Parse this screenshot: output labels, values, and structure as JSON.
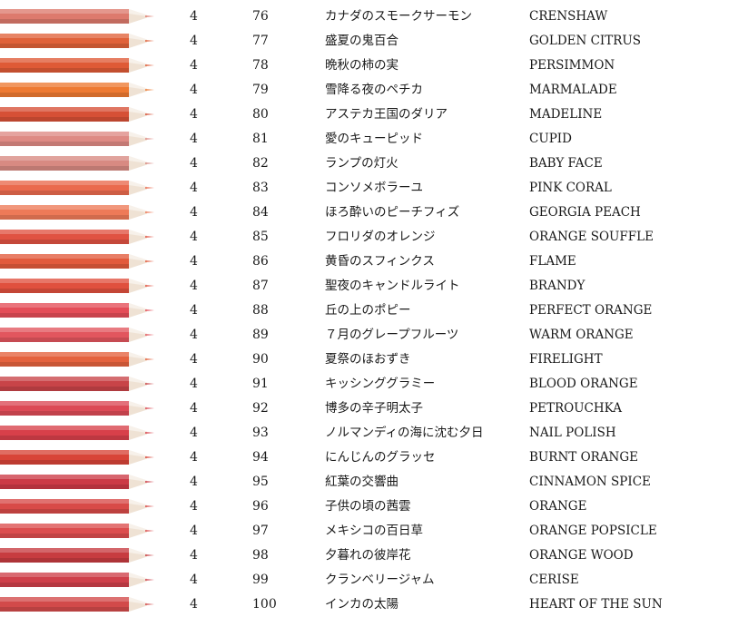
{
  "rows": [
    {
      "count": "4",
      "number": "76",
      "name_ja": "カナダのスモークサーモン",
      "name_en": "CRENSHAW",
      "color": "#dd7a6d"
    },
    {
      "count": "4",
      "number": "77",
      "name_ja": "盛夏の鬼百合",
      "name_en": "GOLDEN CITRUS",
      "color": "#e0623a"
    },
    {
      "count": "4",
      "number": "78",
      "name_ja": "晩秋の柿の実",
      "name_en": "PERSIMMON",
      "color": "#df5a36"
    },
    {
      "count": "4",
      "number": "79",
      "name_ja": "雪降る夜のペチカ",
      "name_en": "MARMALADE",
      "color": "#ee7a32"
    },
    {
      "count": "4",
      "number": "80",
      "name_ja": "アステカ王国のダリア",
      "name_en": "MADELINE",
      "color": "#d65036"
    },
    {
      "count": "4",
      "number": "81",
      "name_ja": "愛のキューピッド",
      "name_en": "CUPID",
      "color": "#de8a84"
    },
    {
      "count": "4",
      "number": "82",
      "name_ja": "ランプの灯火",
      "name_en": "BABY FACE",
      "color": "#d88a82"
    },
    {
      "count": "4",
      "number": "83",
      "name_ja": "コンソメボラーユ",
      "name_en": "PINK CORAL",
      "color": "#ea6a4e"
    },
    {
      "count": "4",
      "number": "84",
      "name_ja": "ほろ酔いのピーチフィズ",
      "name_en": "GEORGIA PEACH",
      "color": "#ee7a58"
    },
    {
      "count": "4",
      "number": "85",
      "name_ja": "フロリダのオレンジ",
      "name_en": "ORANGE SOUFFLE",
      "color": "#e05242"
    },
    {
      "count": "4",
      "number": "86",
      "name_ja": "黄昏のスフィンクス",
      "name_en": "FLAME",
      "color": "#e25a3c"
    },
    {
      "count": "4",
      "number": "87",
      "name_ja": "聖夜のキャンドルライト",
      "name_en": "BRANDY",
      "color": "#e0503e"
    },
    {
      "count": "4",
      "number": "88",
      "name_ja": "丘の上のポピー",
      "name_en": "PERFECT ORANGE",
      "color": "#e44d58"
    },
    {
      "count": "4",
      "number": "89",
      "name_ja": "７月のグレープフルーツ",
      "name_en": "WARM ORANGE",
      "color": "#e2565e"
    },
    {
      "count": "4",
      "number": "90",
      "name_ja": "夏祭のほおずき",
      "name_en": "FIRELIGHT",
      "color": "#e4623e"
    },
    {
      "count": "4",
      "number": "91",
      "name_ja": "キッシンググラミー",
      "name_en": "BLOOD ORANGE",
      "color": "#c84448"
    },
    {
      "count": "4",
      "number": "92",
      "name_ja": "博多の辛子明太子",
      "name_en": "PETROUCHKA",
      "color": "#dc4a56"
    },
    {
      "count": "4",
      "number": "93",
      "name_ja": "ノルマンディの海に沈む夕日",
      "name_en": "NAIL POLISH",
      "color": "#d8404a"
    },
    {
      "count": "4",
      "number": "94",
      "name_ja": "にんじんのグラッセ",
      "name_en": "BURNT ORANGE",
      "color": "#d84438"
    },
    {
      "count": "4",
      "number": "95",
      "name_ja": "紅葉の交響曲",
      "name_en": "CINNAMON SPICE",
      "color": "#cc3a46"
    },
    {
      "count": "4",
      "number": "96",
      "name_ja": "子供の頃の茜雲",
      "name_en": "ORANGE",
      "color": "#d84a48"
    },
    {
      "count": "4",
      "number": "97",
      "name_ja": "メキシコの百日草",
      "name_en": "ORANGE POPSICLE",
      "color": "#dc4d4e"
    },
    {
      "count": "4",
      "number": "98",
      "name_ja": "夕暮れの彼岸花",
      "name_en": "ORANGE WOOD",
      "color": "#c73c40"
    },
    {
      "count": "4",
      "number": "99",
      "name_ja": "クランベリージャム",
      "name_en": "CERISE",
      "color": "#cf404a"
    },
    {
      "count": "4",
      "number": "100",
      "name_ja": "インカの太陽",
      "name_en": "HEART OF THE SUN",
      "color": "#d24a4a"
    }
  ]
}
